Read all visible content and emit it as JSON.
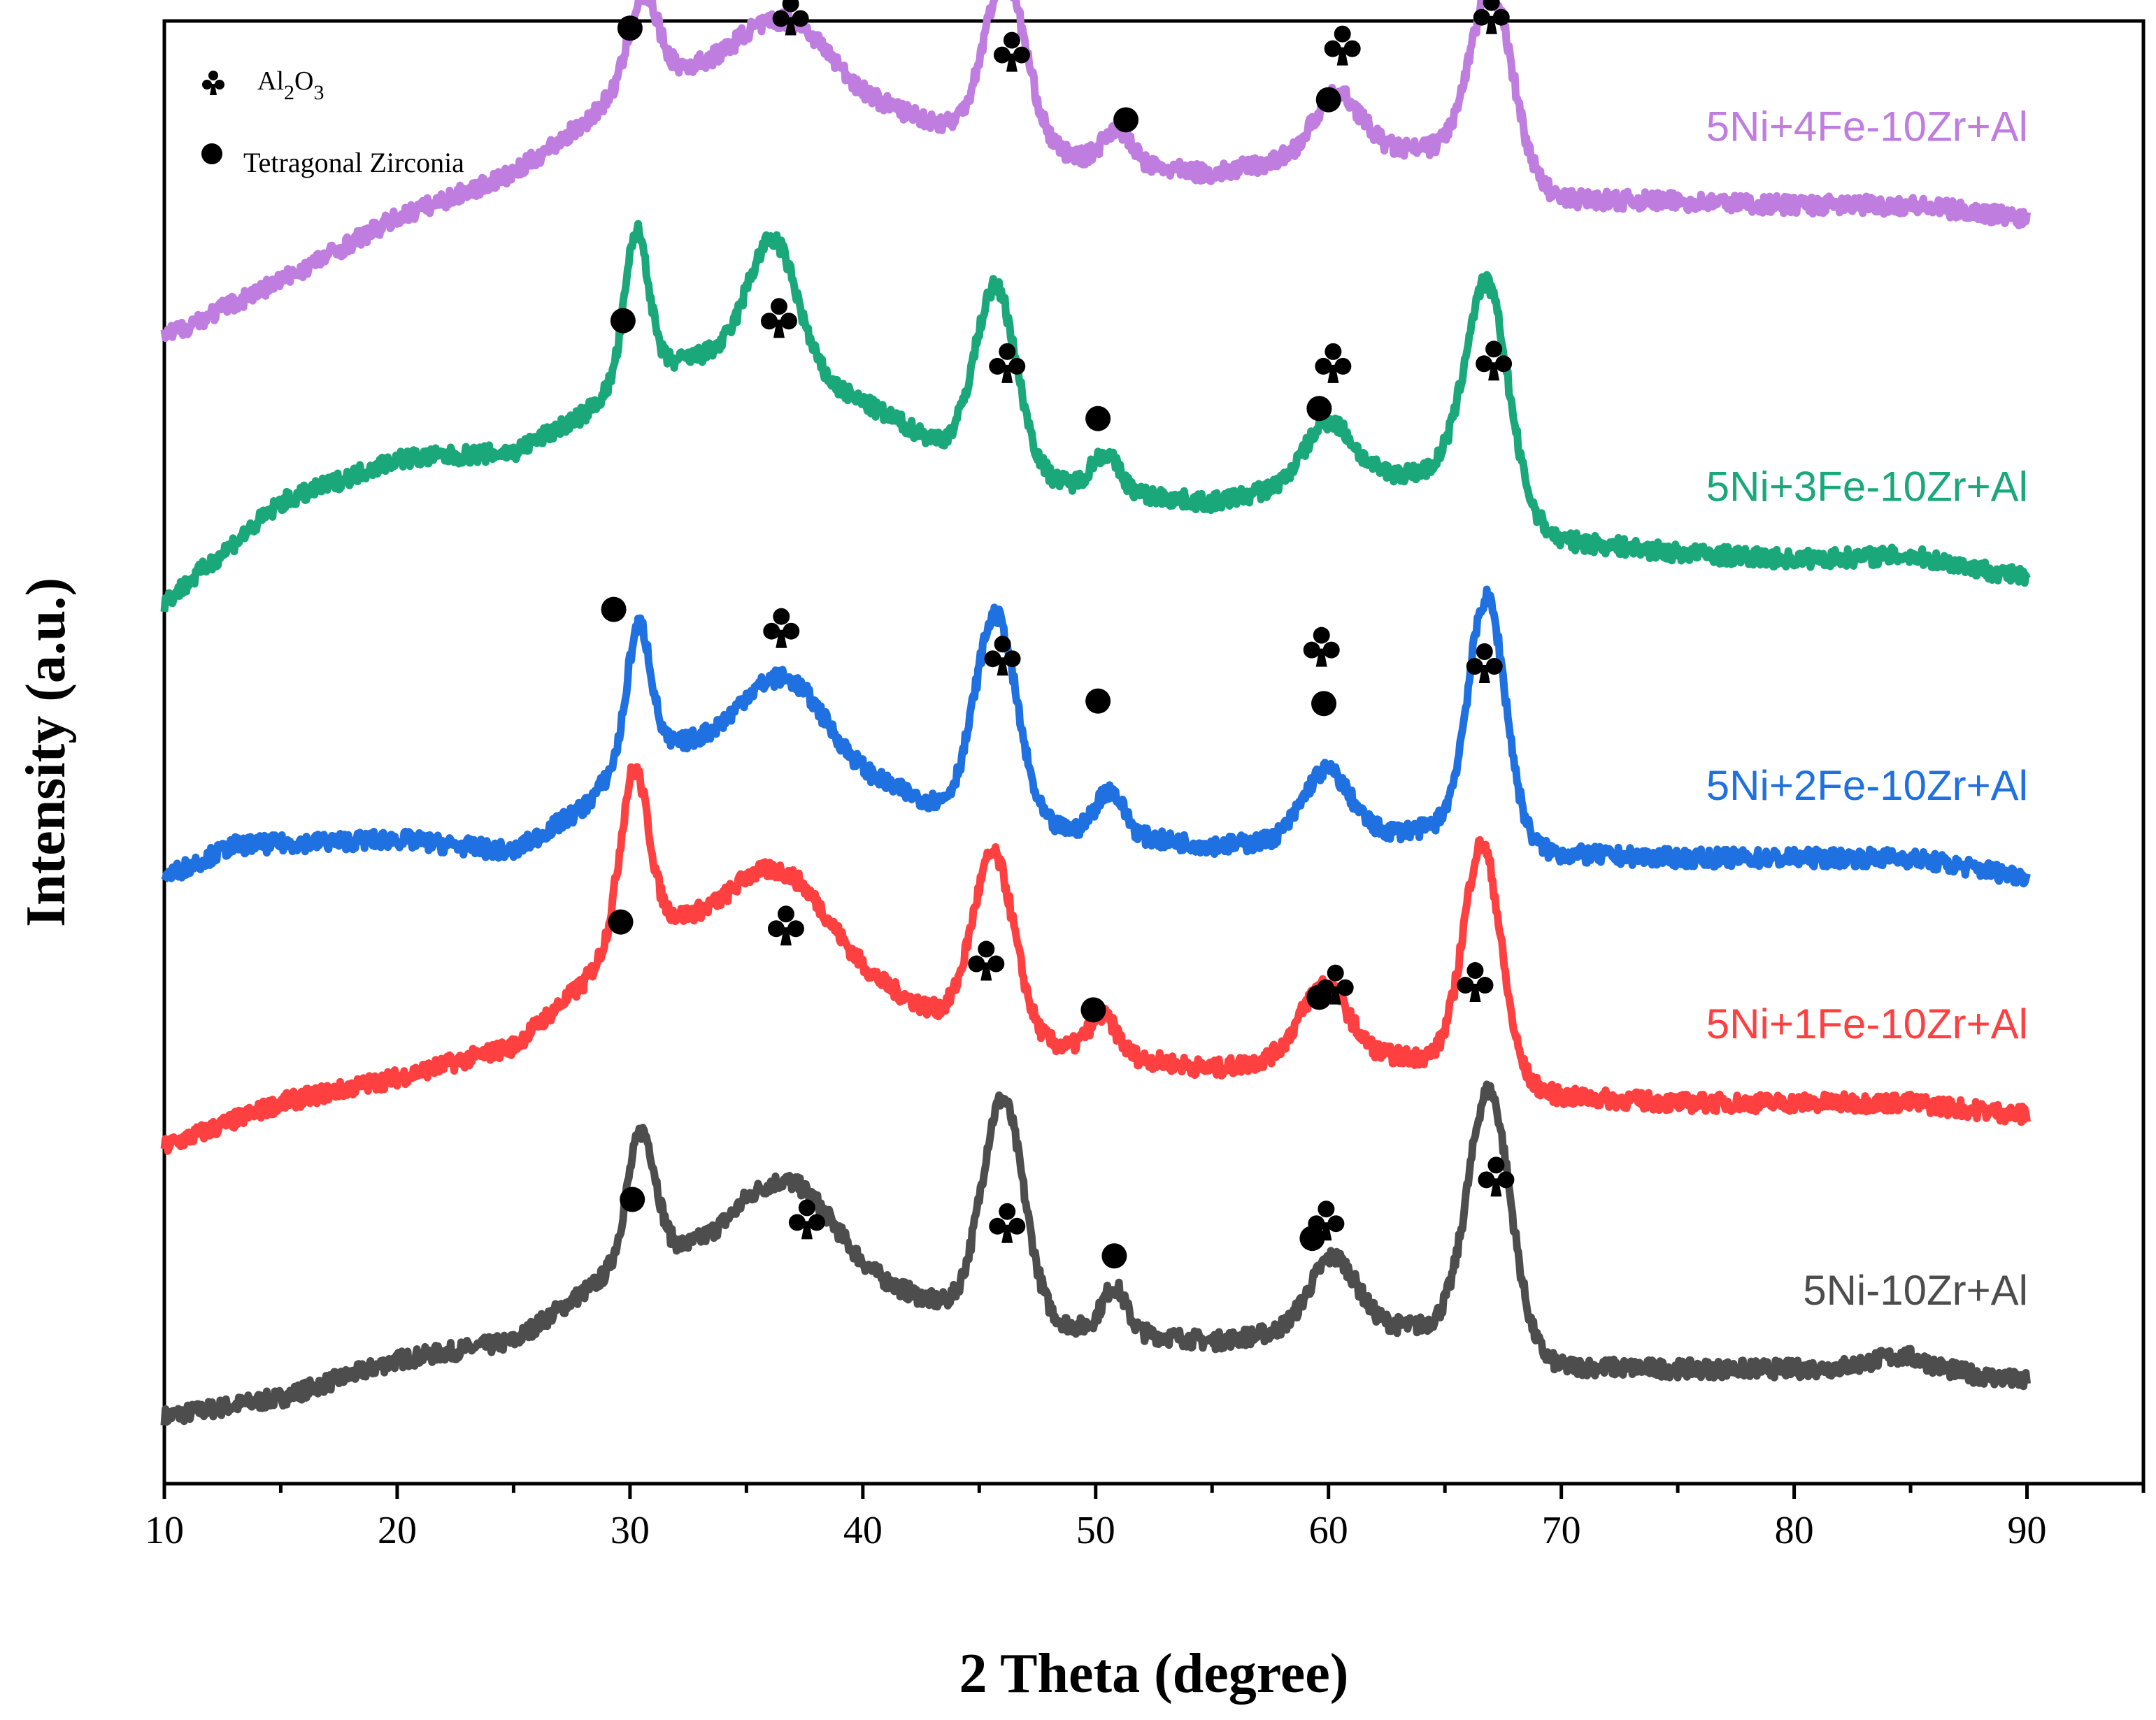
{
  "chart_data": {
    "type": "line",
    "title": "",
    "xlabel": "2 Theta (degree)",
    "ylabel": "Intensity (a.u.)",
    "xlim": [
      10,
      95
    ],
    "xticks": [
      10,
      20,
      30,
      40,
      50,
      60,
      70,
      80,
      90
    ],
    "xtick_labels": [
      "10",
      "20",
      "30",
      "40",
      "50",
      "60",
      "70",
      "80",
      "90"
    ],
    "ylim": [
      0,
      1000
    ],
    "legend": {
      "placement": "top-left",
      "entries": [
        {
          "symbol": "club",
          "label_main": "Al",
          "sub1": "2",
          "mid": "O",
          "sub2": "3"
        },
        {
          "symbol": "circle",
          "label": "Tetragonal Zirconia"
        }
      ]
    },
    "series": [
      {
        "name": "5Ni-10Zr+Al",
        "color": "#4d4d4d",
        "offset": 20,
        "baseline": [
          [
            10,
            0
          ],
          [
            15,
            15
          ],
          [
            20,
            45
          ],
          [
            25,
            60
          ],
          [
            30,
            125
          ],
          [
            35,
            145
          ],
          [
            40,
            110
          ],
          [
            45,
            80
          ],
          [
            50,
            70
          ],
          [
            55,
            60
          ],
          [
            60,
            72
          ],
          [
            65,
            72
          ],
          [
            70,
            40
          ],
          [
            75,
            38
          ],
          [
            80,
            38
          ],
          [
            85,
            40
          ],
          [
            90,
            28
          ]
        ],
        "peaks": [
          [
            30.5,
            100,
            0.6
          ],
          [
            37,
            55,
            1.8
          ],
          [
            46,
            175,
            0.9
          ],
          [
            50.8,
            35,
            0.5
          ],
          [
            60.2,
            55,
            1.0
          ],
          [
            66.9,
            200,
            0.9
          ],
          [
            84.5,
            8,
            1.2
          ]
        ],
        "markers": [
          {
            "type": "circle",
            "x": 30.1,
            "level": 193
          },
          {
            "type": "club",
            "x": 37.6,
            "level": 178
          },
          {
            "type": "club",
            "x": 46.2,
            "level": 175
          },
          {
            "type": "circle",
            "x": 50.8,
            "level": 148
          },
          {
            "type": "club",
            "x": 59.9,
            "level": 177
          },
          {
            "type": "circle",
            "x": 59.3,
            "level": 162
          },
          {
            "type": "club",
            "x": 67.2,
            "level": 212
          }
        ]
      },
      {
        "name": "5Ni+1Fe-10Zr+Al",
        "color": "#ff4040",
        "offset": 235,
        "baseline": [
          [
            10,
            0
          ],
          [
            15,
            35
          ],
          [
            20,
            55
          ],
          [
            25,
            80
          ],
          [
            28,
            130
          ],
          [
            30,
            180
          ],
          [
            35,
            185
          ],
          [
            40,
            135
          ],
          [
            45,
            90
          ],
          [
            50,
            75
          ],
          [
            55,
            62
          ],
          [
            60,
            75
          ],
          [
            65,
            70
          ],
          [
            70,
            40
          ],
          [
            75,
            35
          ],
          [
            80,
            35
          ],
          [
            85,
            35
          ],
          [
            90,
            25
          ]
        ],
        "peaks": [
          [
            30.2,
            120,
            0.6
          ],
          [
            36.8,
            50,
            1.8
          ],
          [
            45.6,
            145,
            0.9
          ],
          [
            50.3,
            30,
            0.6
          ],
          [
            59.8,
            55,
            1.0
          ],
          [
            66.6,
            180,
            0.8
          ]
        ],
        "markers": [
          {
            "type": "circle",
            "x": 29.6,
            "level": 414
          },
          {
            "type": "club",
            "x": 36.7,
            "level": 412
          },
          {
            "type": "club",
            "x": 45.3,
            "level": 384
          },
          {
            "type": "circle",
            "x": 49.9,
            "level": 344
          },
          {
            "type": "club",
            "x": 60.3,
            "level": 365
          },
          {
            "type": "circle",
            "x": 59.6,
            "level": 354
          },
          {
            "type": "club",
            "x": 66.3,
            "level": 367
          }
        ]
      },
      {
        "name": "5Ni+2Fe-10Zr+Al",
        "color": "#1f70e0",
        "offset": 450,
        "baseline": [
          [
            10,
            0
          ],
          [
            13,
            25
          ],
          [
            20,
            30
          ],
          [
            25,
            20
          ],
          [
            28,
            55
          ],
          [
            30,
            100
          ],
          [
            35,
            115
          ],
          [
            40,
            80
          ],
          [
            45,
            45
          ],
          [
            50,
            35
          ],
          [
            55,
            25
          ],
          [
            60,
            30
          ],
          [
            65,
            40
          ],
          [
            70,
            18
          ],
          [
            75,
            15
          ],
          [
            80,
            15
          ],
          [
            85,
            15
          ],
          [
            90,
            0
          ]
        ],
        "peaks": [
          [
            30.4,
            100,
            0.5
          ],
          [
            36.8,
            55,
            1.6
          ],
          [
            45.7,
            165,
            0.9
          ],
          [
            50.6,
            35,
            0.6
          ],
          [
            59.9,
            55,
            1.0
          ],
          [
            66.8,
            190,
            0.8
          ]
        ],
        "markers": [
          {
            "type": "circle",
            "x": 29.3,
            "level": 663
          },
          {
            "type": "club",
            "x": 36.5,
            "level": 649
          },
          {
            "type": "club",
            "x": 46.0,
            "level": 627
          },
          {
            "type": "circle",
            "x": 50.1,
            "level": 590
          },
          {
            "type": "club",
            "x": 59.7,
            "level": 634
          },
          {
            "type": "circle",
            "x": 59.8,
            "level": 588
          },
          {
            "type": "club",
            "x": 66.7,
            "level": 621
          }
        ]
      },
      {
        "name": "5Ni+3Fe-10Zr+Al",
        "color": "#1aa87a",
        "offset": 668,
        "baseline": [
          [
            10,
            0
          ],
          [
            15,
            80
          ],
          [
            20,
            115
          ],
          [
            25,
            120
          ],
          [
            28,
            150
          ],
          [
            30,
            185
          ],
          [
            35,
            205
          ],
          [
            40,
            160
          ],
          [
            45,
            110
          ],
          [
            50,
            90
          ],
          [
            55,
            80
          ],
          [
            60,
            100
          ],
          [
            65,
            105
          ],
          [
            70,
            50
          ],
          [
            75,
            40
          ],
          [
            80,
            35
          ],
          [
            85,
            38
          ],
          [
            90,
            20
          ]
        ],
        "peaks": [
          [
            30.3,
            110,
            0.5
          ],
          [
            36.2,
            95,
            1.0
          ],
          [
            45.7,
            145,
            0.9
          ],
          [
            50.4,
            30,
            0.6
          ],
          [
            60.0,
            45,
            1.0
          ],
          [
            66.8,
            170,
            0.9
          ]
        ],
        "markers": [
          {
            "type": "circle",
            "x": 29.7,
            "level": 893
          },
          {
            "type": "club",
            "x": 36.4,
            "level": 896
          },
          {
            "type": "club",
            "x": 46.2,
            "level": 860
          },
          {
            "type": "circle",
            "x": 50.1,
            "level": 815
          },
          {
            "type": "club",
            "x": 60.2,
            "level": 860
          },
          {
            "type": "circle",
            "x": 59.6,
            "level": 823
          },
          {
            "type": "club",
            "x": 67.1,
            "level": 862
          }
        ]
      },
      {
        "name": "5Ni+4Fe-10Zr+Al",
        "color": "#c07de0",
        "offset": 880,
        "baseline": [
          [
            10,
            0
          ],
          [
            15,
            45
          ],
          [
            20,
            95
          ],
          [
            25,
            130
          ],
          [
            28,
            170
          ],
          [
            30,
            205
          ],
          [
            35,
            225
          ],
          [
            40,
            190
          ],
          [
            45,
            160
          ],
          [
            50,
            140
          ],
          [
            55,
            130
          ],
          [
            60,
            148
          ],
          [
            65,
            150
          ],
          [
            70,
            110
          ],
          [
            75,
            108
          ],
          [
            80,
            105
          ],
          [
            85,
            105
          ],
          [
            90,
            95
          ]
        ],
        "peaks": [
          [
            30.6,
            65,
            0.6
          ],
          [
            37,
            40,
            1.6
          ],
          [
            46.1,
            130,
            0.9
          ],
          [
            50.9,
            28,
            0.6
          ],
          [
            60.4,
            45,
            1.0
          ],
          [
            67.0,
            140,
            0.9
          ]
        ],
        "markers": [
          {
            "type": "circle",
            "x": 30.0,
            "level": 1126
          },
          {
            "type": "club",
            "x": 36.9,
            "level": 1137
          },
          {
            "type": "club",
            "x": 46.4,
            "level": 1108
          },
          {
            "type": "circle",
            "x": 51.3,
            "level": 1053
          },
          {
            "type": "club",
            "x": 60.6,
            "level": 1113
          },
          {
            "type": "circle",
            "x": 60.0,
            "level": 1069
          },
          {
            "type": "club",
            "x": 67.0,
            "level": 1138
          }
        ]
      }
    ]
  }
}
